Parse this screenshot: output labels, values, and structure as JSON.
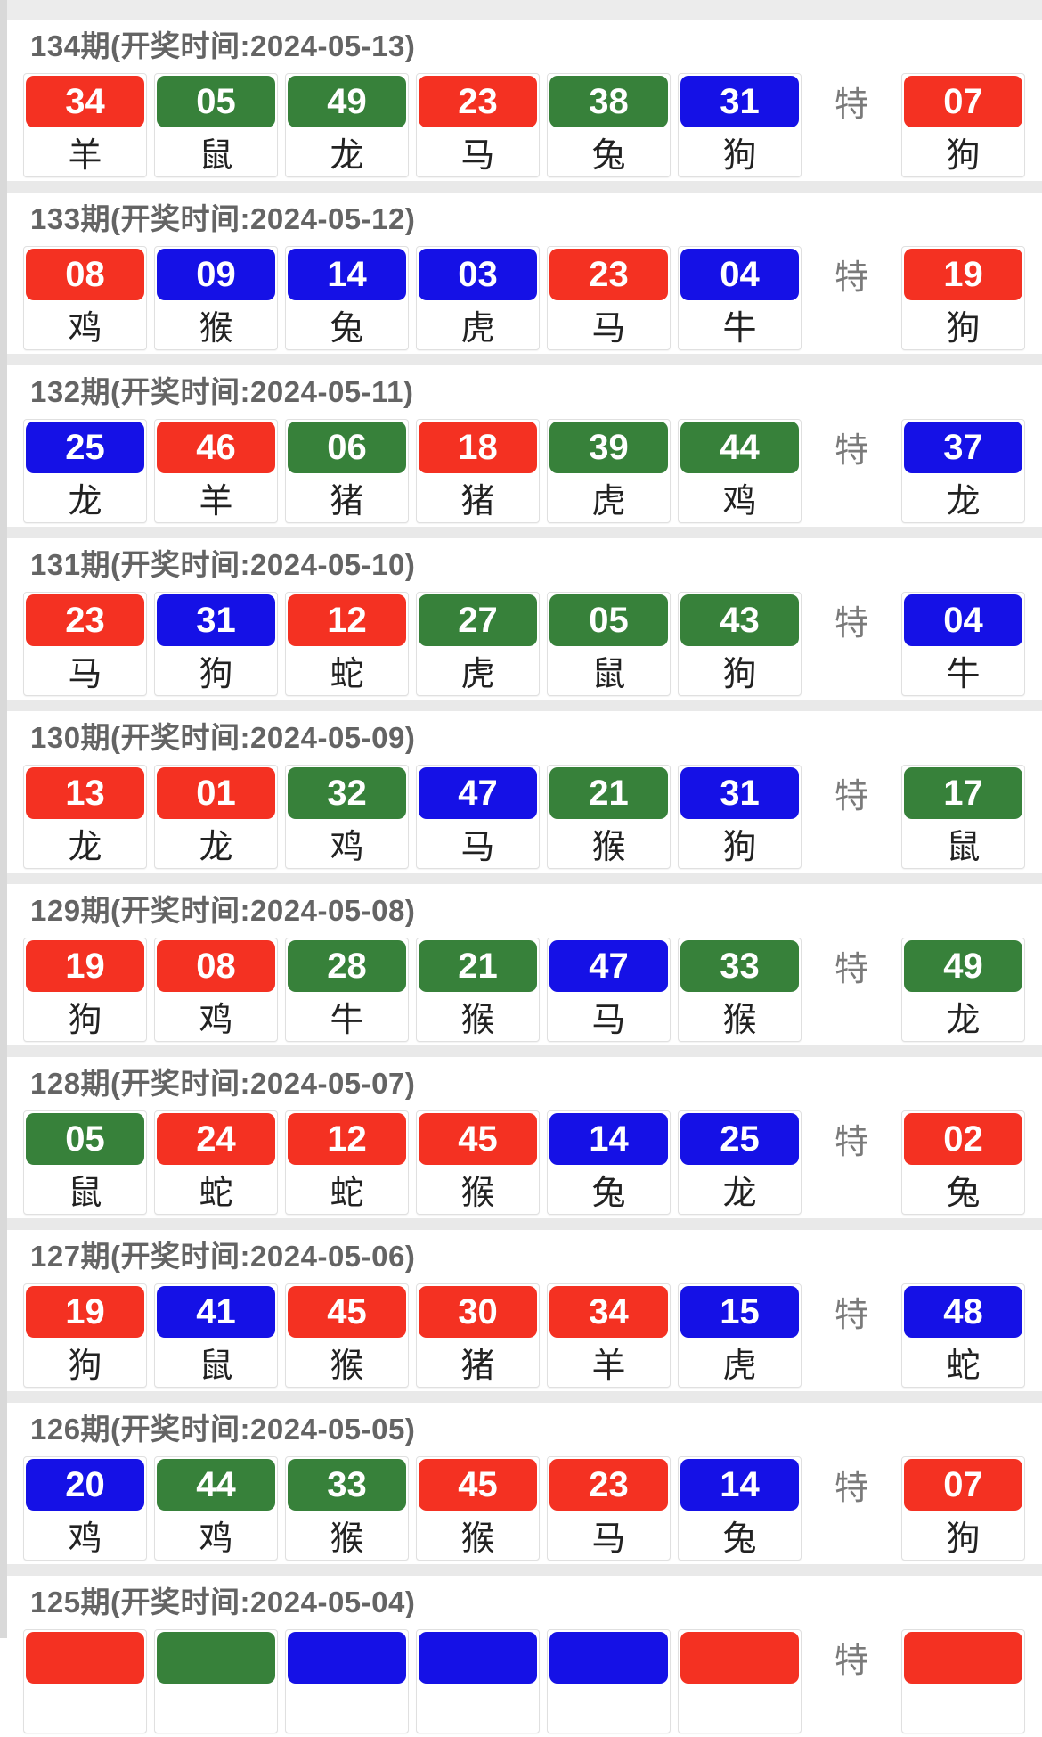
{
  "labels": {
    "special": "特"
  },
  "colors": {
    "red": "#f43122",
    "green": "#37813a",
    "blue": "#1511e6",
    "page_bg": "#e9e9e9",
    "header_text": "#646464",
    "zodiac_text": "#222222",
    "special_text": "#7a7a7a"
  },
  "draws": [
    {
      "period": "134",
      "open_date": "2024-05-13",
      "title": "134期(开奖时间:2024-05-13)",
      "balls": [
        {
          "num": "34",
          "color": "red",
          "zodiac": "羊"
        },
        {
          "num": "05",
          "color": "green",
          "zodiac": "鼠"
        },
        {
          "num": "49",
          "color": "green",
          "zodiac": "龙"
        },
        {
          "num": "23",
          "color": "red",
          "zodiac": "马"
        },
        {
          "num": "38",
          "color": "green",
          "zodiac": "兔"
        },
        {
          "num": "31",
          "color": "blue",
          "zodiac": "狗"
        }
      ],
      "special": {
        "num": "07",
        "color": "red",
        "zodiac": "狗"
      }
    },
    {
      "period": "133",
      "open_date": "2024-05-12",
      "title": "133期(开奖时间:2024-05-12)",
      "balls": [
        {
          "num": "08",
          "color": "red",
          "zodiac": "鸡"
        },
        {
          "num": "09",
          "color": "blue",
          "zodiac": "猴"
        },
        {
          "num": "14",
          "color": "blue",
          "zodiac": "兔"
        },
        {
          "num": "03",
          "color": "blue",
          "zodiac": "虎"
        },
        {
          "num": "23",
          "color": "red",
          "zodiac": "马"
        },
        {
          "num": "04",
          "color": "blue",
          "zodiac": "牛"
        }
      ],
      "special": {
        "num": "19",
        "color": "red",
        "zodiac": "狗"
      }
    },
    {
      "period": "132",
      "open_date": "2024-05-11",
      "title": "132期(开奖时间:2024-05-11)",
      "balls": [
        {
          "num": "25",
          "color": "blue",
          "zodiac": "龙"
        },
        {
          "num": "46",
          "color": "red",
          "zodiac": "羊"
        },
        {
          "num": "06",
          "color": "green",
          "zodiac": "猪"
        },
        {
          "num": "18",
          "color": "red",
          "zodiac": "猪"
        },
        {
          "num": "39",
          "color": "green",
          "zodiac": "虎"
        },
        {
          "num": "44",
          "color": "green",
          "zodiac": "鸡"
        }
      ],
      "special": {
        "num": "37",
        "color": "blue",
        "zodiac": "龙"
      }
    },
    {
      "period": "131",
      "open_date": "2024-05-10",
      "title": "131期(开奖时间:2024-05-10)",
      "balls": [
        {
          "num": "23",
          "color": "red",
          "zodiac": "马"
        },
        {
          "num": "31",
          "color": "blue",
          "zodiac": "狗"
        },
        {
          "num": "12",
          "color": "red",
          "zodiac": "蛇"
        },
        {
          "num": "27",
          "color": "green",
          "zodiac": "虎"
        },
        {
          "num": "05",
          "color": "green",
          "zodiac": "鼠"
        },
        {
          "num": "43",
          "color": "green",
          "zodiac": "狗"
        }
      ],
      "special": {
        "num": "04",
        "color": "blue",
        "zodiac": "牛"
      }
    },
    {
      "period": "130",
      "open_date": "2024-05-09",
      "title": "130期(开奖时间:2024-05-09)",
      "balls": [
        {
          "num": "13",
          "color": "red",
          "zodiac": "龙"
        },
        {
          "num": "01",
          "color": "red",
          "zodiac": "龙"
        },
        {
          "num": "32",
          "color": "green",
          "zodiac": "鸡"
        },
        {
          "num": "47",
          "color": "blue",
          "zodiac": "马"
        },
        {
          "num": "21",
          "color": "green",
          "zodiac": "猴"
        },
        {
          "num": "31",
          "color": "blue",
          "zodiac": "狗"
        }
      ],
      "special": {
        "num": "17",
        "color": "green",
        "zodiac": "鼠"
      }
    },
    {
      "period": "129",
      "open_date": "2024-05-08",
      "title": "129期(开奖时间:2024-05-08)",
      "balls": [
        {
          "num": "19",
          "color": "red",
          "zodiac": "狗"
        },
        {
          "num": "08",
          "color": "red",
          "zodiac": "鸡"
        },
        {
          "num": "28",
          "color": "green",
          "zodiac": "牛"
        },
        {
          "num": "21",
          "color": "green",
          "zodiac": "猴"
        },
        {
          "num": "47",
          "color": "blue",
          "zodiac": "马"
        },
        {
          "num": "33",
          "color": "green",
          "zodiac": "猴"
        }
      ],
      "special": {
        "num": "49",
        "color": "green",
        "zodiac": "龙"
      }
    },
    {
      "period": "128",
      "open_date": "2024-05-07",
      "title": "128期(开奖时间:2024-05-07)",
      "balls": [
        {
          "num": "05",
          "color": "green",
          "zodiac": "鼠"
        },
        {
          "num": "24",
          "color": "red",
          "zodiac": "蛇"
        },
        {
          "num": "12",
          "color": "red",
          "zodiac": "蛇"
        },
        {
          "num": "45",
          "color": "red",
          "zodiac": "猴"
        },
        {
          "num": "14",
          "color": "blue",
          "zodiac": "兔"
        },
        {
          "num": "25",
          "color": "blue",
          "zodiac": "龙"
        }
      ],
      "special": {
        "num": "02",
        "color": "red",
        "zodiac": "兔"
      }
    },
    {
      "period": "127",
      "open_date": "2024-05-06",
      "title": "127期(开奖时间:2024-05-06)",
      "balls": [
        {
          "num": "19",
          "color": "red",
          "zodiac": "狗"
        },
        {
          "num": "41",
          "color": "blue",
          "zodiac": "鼠"
        },
        {
          "num": "45",
          "color": "red",
          "zodiac": "猴"
        },
        {
          "num": "30",
          "color": "red",
          "zodiac": "猪"
        },
        {
          "num": "34",
          "color": "red",
          "zodiac": "羊"
        },
        {
          "num": "15",
          "color": "blue",
          "zodiac": "虎"
        }
      ],
      "special": {
        "num": "48",
        "color": "blue",
        "zodiac": "蛇"
      }
    },
    {
      "period": "126",
      "open_date": "2024-05-05",
      "title": "126期(开奖时间:2024-05-05)",
      "balls": [
        {
          "num": "20",
          "color": "blue",
          "zodiac": "鸡"
        },
        {
          "num": "44",
          "color": "green",
          "zodiac": "鸡"
        },
        {
          "num": "33",
          "color": "green",
          "zodiac": "猴"
        },
        {
          "num": "45",
          "color": "red",
          "zodiac": "猴"
        },
        {
          "num": "23",
          "color": "red",
          "zodiac": "马"
        },
        {
          "num": "14",
          "color": "blue",
          "zodiac": "兔"
        }
      ],
      "special": {
        "num": "07",
        "color": "red",
        "zodiac": "狗"
      }
    },
    {
      "period": "125",
      "open_date": "2024-05-04",
      "title": "125期(开奖时间:2024-05-04)",
      "balls": [
        {
          "num": "",
          "color": "red",
          "zodiac": ""
        },
        {
          "num": "",
          "color": "green",
          "zodiac": ""
        },
        {
          "num": "",
          "color": "blue",
          "zodiac": ""
        },
        {
          "num": "",
          "color": "blue",
          "zodiac": ""
        },
        {
          "num": "",
          "color": "blue",
          "zodiac": ""
        },
        {
          "num": "",
          "color": "red",
          "zodiac": ""
        }
      ],
      "special": {
        "num": "",
        "color": "red",
        "zodiac": ""
      }
    }
  ]
}
